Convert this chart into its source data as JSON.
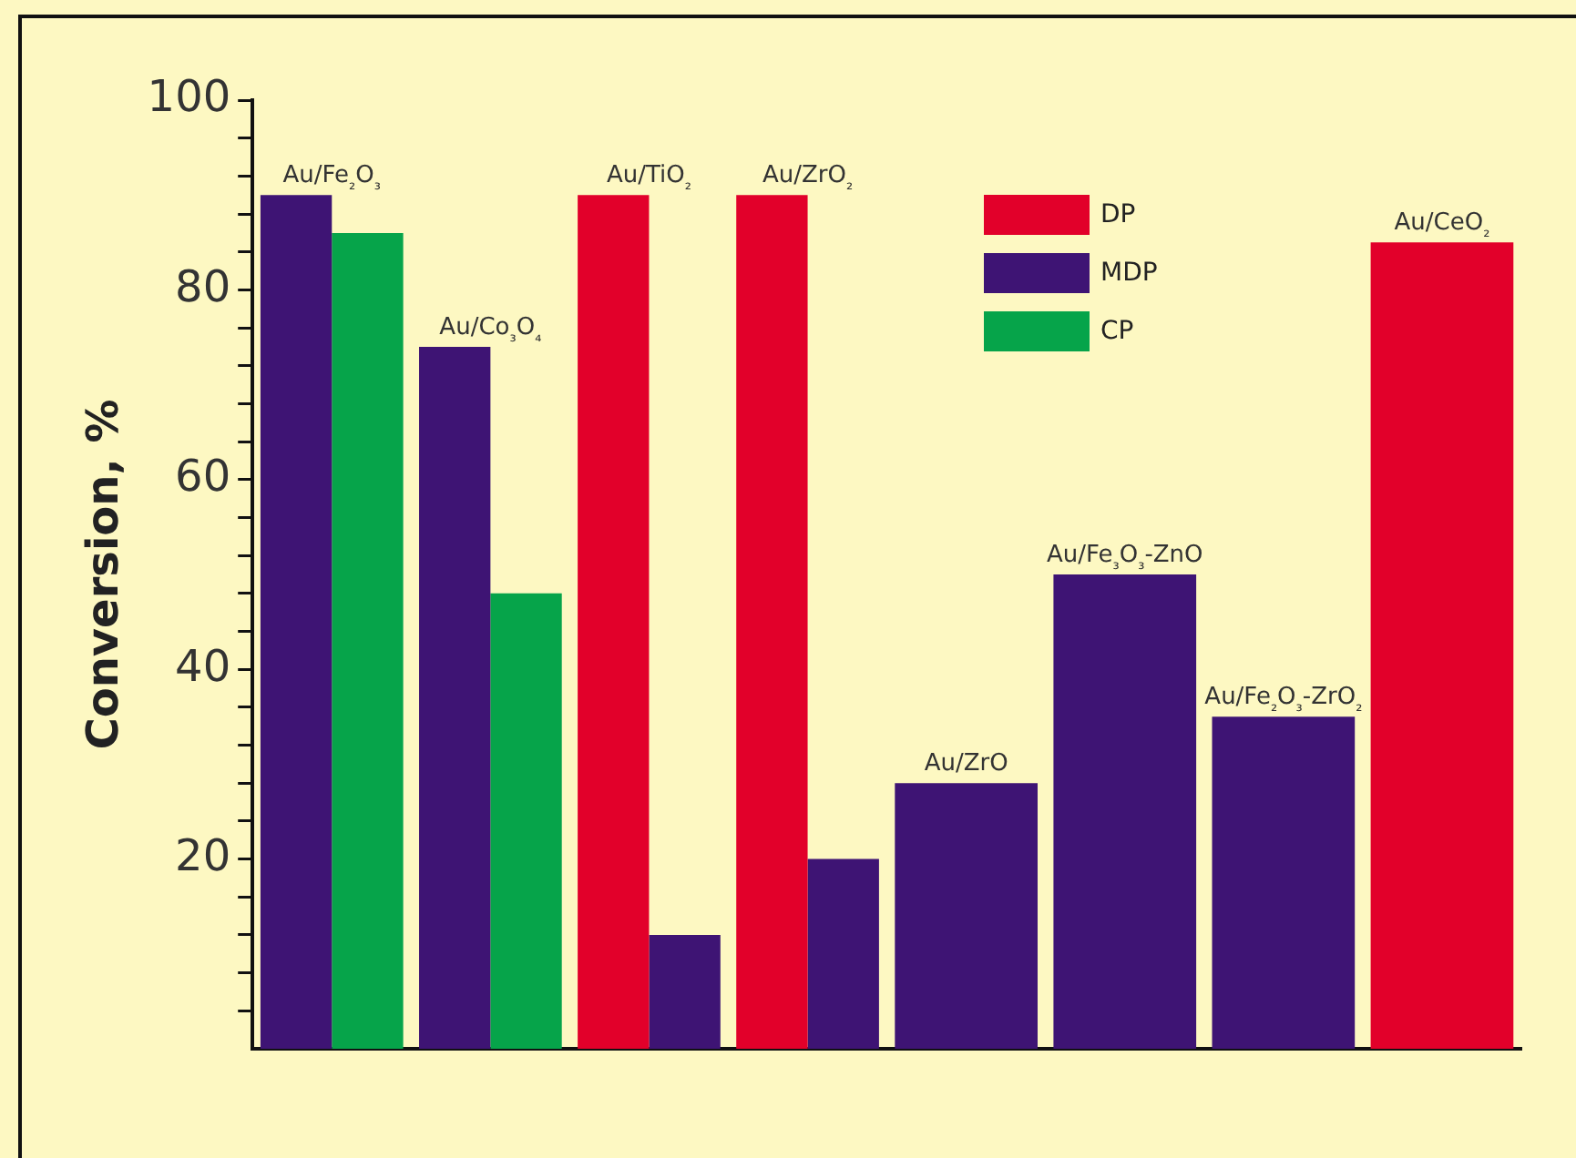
{
  "chart_data": {
    "type": "bar",
    "ylabel": "Conversion, %",
    "categories": [
      "Au/Fe₂O₃",
      "Au/Co₃O₄",
      "Au/TiO₂",
      "Au/ZrO₂",
      "Au/ZrO",
      "Au/Fe₃O₃-ZnO",
      "Au/Fe₂O₃-ZrO₂",
      "Au/CeO₂"
    ],
    "series": [
      {
        "name": "DP",
        "color": "#e2002a",
        "values": [
          null,
          null,
          90,
          90,
          null,
          null,
          null,
          85
        ]
      },
      {
        "name": "MDP",
        "color": "#3e1474",
        "values": [
          90,
          74,
          12,
          20,
          28,
          50,
          35,
          null
        ]
      },
      {
        "name": "CP",
        "color": "#06a44a",
        "values": [
          86,
          48,
          null,
          null,
          null,
          null,
          null,
          null
        ]
      }
    ],
    "ylim": [
      0,
      100
    ],
    "yticks": [
      {
        "value": 4,
        "label": null
      },
      {
        "value": 8,
        "label": null
      },
      {
        "value": 12,
        "label": null
      },
      {
        "value": 16,
        "label": null
      },
      20,
      {
        "value": 24,
        "label": null
      },
      {
        "value": 28,
        "label": null
      },
      {
        "value": 32,
        "label": null
      },
      {
        "value": 36,
        "label": null
      },
      40,
      {
        "value": 44,
        "label": null
      },
      {
        "value": 48,
        "label": null
      },
      {
        "value": 52,
        "label": null
      },
      {
        "value": 56,
        "label": null
      },
      60,
      {
        "value": 64,
        "label": null
      },
      {
        "value": 68,
        "label": null
      },
      {
        "value": 72,
        "label": null
      },
      {
        "value": 76,
        "label": null
      },
      80,
      {
        "value": 84,
        "label": null
      },
      {
        "value": 88,
        "label": null
      },
      {
        "value": 92,
        "label": null
      },
      {
        "value": 96,
        "label": null
      },
      100
    ],
    "tick_labels": "y",
    "grid": false,
    "legend": "top right"
  }
}
